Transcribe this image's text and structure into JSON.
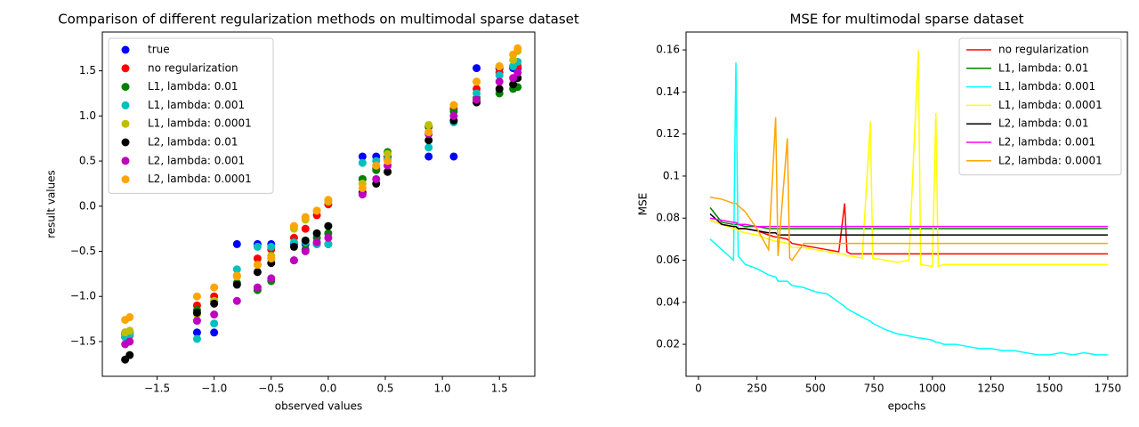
{
  "chart_data": [
    {
      "type": "scatter",
      "title": "Comparison of different regularization methods on multimodal sparse dataset",
      "xlabel": "observed values",
      "ylabel": "result values",
      "xlim": [
        -1.98,
        1.81
      ],
      "ylim": [
        -1.885,
        1.93
      ],
      "xticks": [
        {
          "value": -1.5,
          "label": "−1.5"
        },
        {
          "value": -1.0,
          "label": "−1.0"
        },
        {
          "value": -0.5,
          "label": "−0.5"
        },
        {
          "value": 0,
          "label": "0.0"
        },
        0.5,
        {
          "value": 1,
          "label": "1.0"
        },
        1.5
      ],
      "yticks": [
        {
          "value": -1.5,
          "label": "−1.5"
        },
        {
          "value": -1.0,
          "label": "−1.0"
        },
        {
          "value": -0.5,
          "label": "−0.5"
        },
        {
          "value": 0,
          "label": "0.0"
        },
        0.5,
        {
          "value": 1,
          "label": "1.0"
        },
        1.5
      ],
      "legend": "upper-left",
      "x": [
        -1.78,
        -1.74,
        -1.15,
        -1.0,
        -0.8,
        -0.62,
        -0.5,
        -0.3,
        -0.2,
        -0.1,
        0.0,
        0.3,
        0.42,
        0.52,
        0.88,
        1.1,
        1.3,
        1.5,
        1.62,
        1.66
      ],
      "series": [
        {
          "name": "true",
          "color": "#0000ff",
          "values": [
            -1.4,
            -1.4,
            -1.4,
            -1.4,
            -0.42,
            -0.42,
            -0.42,
            -0.42,
            -0.42,
            -0.42,
            -0.42,
            0.55,
            0.55,
            0.55,
            0.55,
            0.55,
            1.53,
            1.53,
            1.53,
            1.53
          ]
        },
        {
          "name": "no regularization",
          "color": "#ff0000",
          "values": [
            -1.45,
            -1.43,
            -1.1,
            -1.0,
            -0.77,
            -0.58,
            -0.48,
            -0.35,
            -0.25,
            -0.1,
            0.02,
            0.3,
            0.42,
            0.52,
            0.88,
            1.08,
            1.3,
            1.48,
            1.55,
            1.55
          ]
        },
        {
          "name": "L1, lambda: 0.01",
          "color": "#008000",
          "values": [
            -1.42,
            -1.4,
            -1.15,
            -1.05,
            -0.85,
            -0.93,
            -0.83,
            -0.6,
            -0.48,
            -0.35,
            -0.3,
            0.3,
            0.4,
            0.6,
            0.88,
            1.05,
            1.2,
            1.25,
            1.3,
            1.32
          ]
        },
        {
          "name": "L1, lambda: 0.001",
          "color": "#00bfbf",
          "values": [
            -1.45,
            -1.42,
            -1.47,
            -1.3,
            -0.7,
            -0.45,
            -0.45,
            -0.4,
            -0.4,
            -0.42,
            -0.42,
            0.48,
            0.5,
            0.52,
            0.65,
            0.93,
            1.25,
            1.45,
            1.55,
            1.6
          ]
        },
        {
          "name": "L1, lambda: 0.0001",
          "color": "#bfbf00",
          "values": [
            -1.4,
            -1.38,
            -1.2,
            -1.05,
            -0.78,
            -0.65,
            -0.55,
            -0.25,
            -0.15,
            -0.05,
            0.05,
            0.25,
            0.45,
            0.58,
            0.9,
            1.12,
            1.38,
            1.55,
            1.62,
            1.72
          ]
        },
        {
          "name": "L2, lambda: 0.01",
          "color": "#000000",
          "values": [
            -1.7,
            -1.65,
            -1.18,
            -1.08,
            -0.87,
            -0.73,
            -0.63,
            -0.45,
            -0.38,
            -0.3,
            -0.22,
            0.15,
            0.25,
            0.38,
            0.73,
            0.95,
            1.15,
            1.3,
            1.35,
            1.42
          ]
        },
        {
          "name": "L2, lambda: 0.001",
          "color": "#bf00bf",
          "values": [
            -1.53,
            -1.5,
            -1.27,
            -1.2,
            -1.05,
            -0.9,
            -0.8,
            -0.6,
            -0.5,
            -0.4,
            -0.35,
            0.13,
            0.3,
            0.45,
            0.8,
            1.0,
            1.18,
            1.38,
            1.42,
            1.48
          ]
        },
        {
          "name": "L2, lambda: 0.0001",
          "color": "#ffa500",
          "values": [
            -1.26,
            -1.23,
            -1.0,
            -0.9,
            -0.77,
            -0.65,
            -0.58,
            -0.22,
            -0.12,
            -0.05,
            0.07,
            0.2,
            0.45,
            0.5,
            0.82,
            1.12,
            1.38,
            1.55,
            1.68,
            1.75
          ]
        }
      ]
    },
    {
      "type": "line",
      "title": "MSE for multimodal sparse dataset",
      "xlabel": "epochs",
      "ylabel": "MSE",
      "xlim": [
        -53,
        1834
      ],
      "ylim": [
        0.0048,
        0.1685
      ],
      "xticks": [
        0,
        250,
        500,
        750,
        1000,
        1250,
        1500,
        1750
      ],
      "yticks": [
        0.02,
        0.04,
        0.06,
        0.08,
        0.1,
        0.12,
        0.14,
        0.16
      ],
      "legend": "upper-right",
      "x": [
        50,
        100,
        150,
        160,
        170,
        200,
        250,
        300,
        330,
        340,
        380,
        390,
        400,
        450,
        500,
        550,
        600,
        625,
        635,
        650,
        700,
        735,
        745,
        800,
        850,
        900,
        940,
        950,
        1000,
        1015,
        1025,
        1050,
        1100,
        1150,
        1200,
        1250,
        1300,
        1350,
        1400,
        1450,
        1500,
        1550,
        1600,
        1650,
        1700,
        1750
      ],
      "series": [
        {
          "name": "no regularization",
          "color": "#ff0000",
          "values": [
            0.079,
            0.077,
            0.076,
            0.076,
            0.075,
            0.075,
            0.074,
            0.072,
            0.071,
            0.071,
            0.07,
            0.069,
            0.068,
            0.067,
            0.066,
            0.065,
            0.064,
            0.087,
            0.064,
            0.063,
            0.063,
            0.063,
            0.063,
            0.063,
            0.063,
            0.063,
            0.063,
            0.063,
            0.063,
            0.063,
            0.063,
            0.063,
            0.063,
            0.063,
            0.063,
            0.063,
            0.063,
            0.063,
            0.063,
            0.063,
            0.063,
            0.063,
            0.063,
            0.063,
            0.063,
            0.063
          ]
        },
        {
          "name": "L1, lambda: 0.01",
          "color": "#008000",
          "values": [
            0.085,
            0.078,
            0.077,
            0.077,
            0.077,
            0.076,
            0.076,
            0.075,
            0.075,
            0.075,
            0.075,
            0.075,
            0.075,
            0.075,
            0.075,
            0.075,
            0.075,
            0.075,
            0.075,
            0.075,
            0.075,
            0.075,
            0.075,
            0.075,
            0.075,
            0.075,
            0.075,
            0.075,
            0.075,
            0.075,
            0.075,
            0.075,
            0.075,
            0.075,
            0.075,
            0.075,
            0.075,
            0.075,
            0.075,
            0.075,
            0.075,
            0.075,
            0.075,
            0.075,
            0.075,
            0.075
          ]
        },
        {
          "name": "L1, lambda: 0.001",
          "color": "#00ffff",
          "values": [
            0.07,
            0.065,
            0.06,
            0.154,
            0.062,
            0.058,
            0.056,
            0.053,
            0.052,
            0.05,
            0.05,
            0.049,
            0.048,
            0.047,
            0.045,
            0.044,
            0.04,
            0.038,
            0.037,
            0.036,
            0.033,
            0.031,
            0.03,
            0.027,
            0.025,
            0.024,
            0.023,
            0.023,
            0.022,
            0.021,
            0.021,
            0.02,
            0.02,
            0.019,
            0.018,
            0.018,
            0.017,
            0.017,
            0.016,
            0.015,
            0.015,
            0.016,
            0.015,
            0.016,
            0.015,
            0.015
          ]
        },
        {
          "name": "L1, lambda: 0.0001",
          "color": "#ffff00",
          "values": [
            0.079,
            0.077,
            0.075,
            0.075,
            0.074,
            0.073,
            0.072,
            0.07,
            0.069,
            0.069,
            0.068,
            0.067,
            0.066,
            0.066,
            0.065,
            0.064,
            0.063,
            0.063,
            0.062,
            0.062,
            0.061,
            0.126,
            0.061,
            0.06,
            0.059,
            0.06,
            0.16,
            0.058,
            0.057,
            0.13,
            0.057,
            0.058,
            0.058,
            0.058,
            0.058,
            0.058,
            0.058,
            0.058,
            0.058,
            0.058,
            0.058,
            0.058,
            0.058,
            0.058,
            0.058,
            0.058
          ]
        },
        {
          "name": "L2, lambda: 0.01",
          "color": "#000000",
          "values": [
            0.082,
            0.077,
            0.076,
            0.076,
            0.075,
            0.075,
            0.074,
            0.073,
            0.073,
            0.072,
            0.072,
            0.072,
            0.072,
            0.072,
            0.072,
            0.072,
            0.072,
            0.072,
            0.072,
            0.072,
            0.072,
            0.072,
            0.072,
            0.072,
            0.072,
            0.072,
            0.072,
            0.072,
            0.072,
            0.072,
            0.072,
            0.072,
            0.072,
            0.072,
            0.072,
            0.072,
            0.072,
            0.072,
            0.072,
            0.072,
            0.072,
            0.072,
            0.072,
            0.072,
            0.072,
            0.072
          ]
        },
        {
          "name": "L2, lambda: 0.001",
          "color": "#ff00ff",
          "values": [
            0.08,
            0.079,
            0.078,
            0.078,
            0.077,
            0.077,
            0.076,
            0.076,
            0.076,
            0.076,
            0.076,
            0.076,
            0.076,
            0.076,
            0.076,
            0.076,
            0.076,
            0.076,
            0.076,
            0.076,
            0.076,
            0.076,
            0.076,
            0.076,
            0.076,
            0.076,
            0.076,
            0.076,
            0.076,
            0.076,
            0.076,
            0.076,
            0.076,
            0.076,
            0.076,
            0.076,
            0.076,
            0.076,
            0.076,
            0.076,
            0.076,
            0.076,
            0.076,
            0.076,
            0.076,
            0.076
          ]
        },
        {
          "name": "L2, lambda: 0.0001",
          "color": "#ffa500",
          "values": [
            0.09,
            0.089,
            0.087,
            0.087,
            0.086,
            0.083,
            0.075,
            0.065,
            0.128,
            0.062,
            0.118,
            0.061,
            0.06,
            0.068,
            0.068,
            0.068,
            0.068,
            0.068,
            0.068,
            0.068,
            0.068,
            0.068,
            0.068,
            0.068,
            0.068,
            0.068,
            0.068,
            0.068,
            0.068,
            0.068,
            0.068,
            0.068,
            0.068,
            0.068,
            0.068,
            0.068,
            0.068,
            0.068,
            0.068,
            0.068,
            0.068,
            0.068,
            0.068,
            0.068,
            0.068,
            0.068
          ]
        }
      ]
    }
  ]
}
